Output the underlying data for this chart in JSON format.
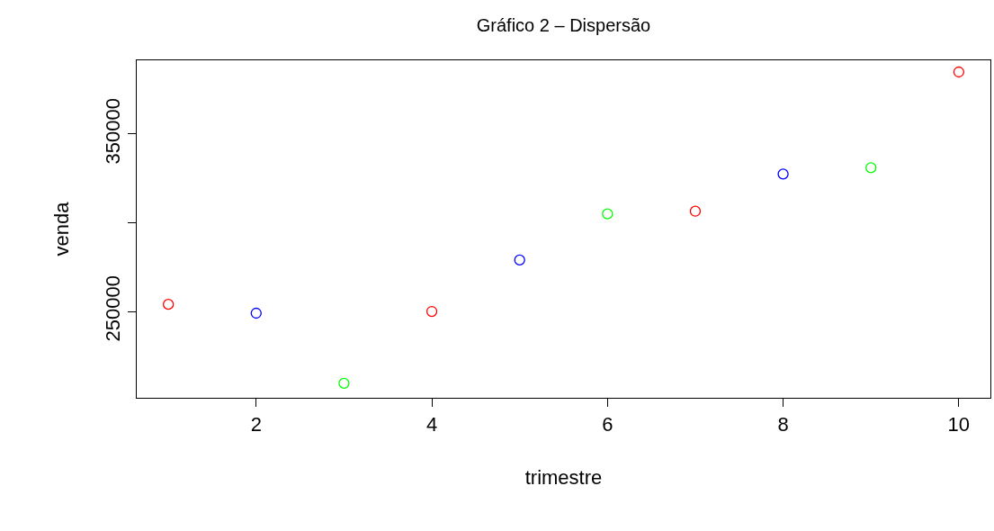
{
  "chart_data": {
    "type": "scatter",
    "title": "Gráfico 2 – Dispersão",
    "xlabel": "trimestre",
    "ylabel": "venda",
    "x": [
      1,
      2,
      3,
      4,
      5,
      6,
      7,
      8,
      9,
      10
    ],
    "values": [
      254000,
      249000,
      209500,
      250000,
      279000,
      305000,
      306500,
      327500,
      331000,
      385000
    ],
    "colors": [
      "#ff0000",
      "#0000ff",
      "#00ff00",
      "#ff0000",
      "#0000ff",
      "#00ff00",
      "#ff0000",
      "#0000ff",
      "#00ff00",
      "#ff0000"
    ],
    "xlim": [
      0.64,
      10.36
    ],
    "xticks": [
      2,
      4,
      6,
      8,
      10
    ],
    "ylim": [
      201300,
      391600
    ],
    "yticks": [
      250000,
      {
        "value": 300000,
        "label": null
      },
      350000
    ],
    "marker": "circle"
  }
}
